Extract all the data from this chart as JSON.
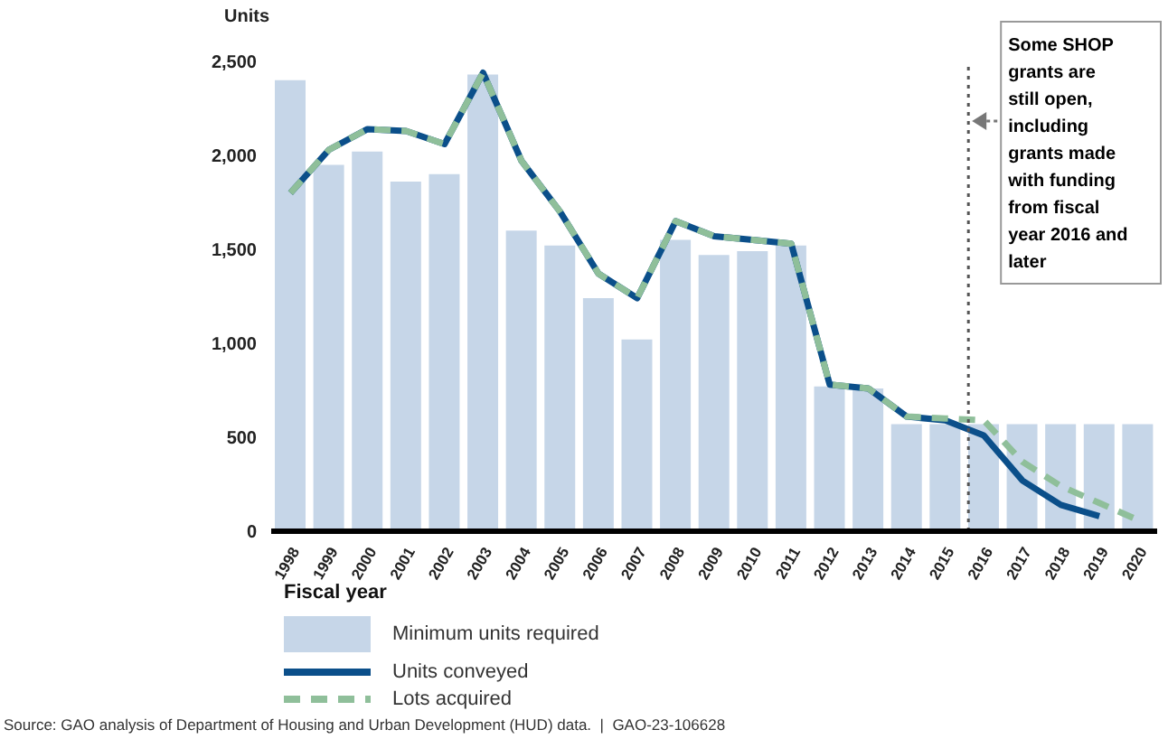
{
  "chart_data": {
    "type": "bar",
    "ylabel": "Units",
    "xlabel": "Fiscal year",
    "x": [
      1998,
      1999,
      2000,
      2001,
      2002,
      2003,
      2004,
      2005,
      2006,
      2007,
      2008,
      2009,
      2010,
      2011,
      2012,
      2013,
      2014,
      2015,
      2016,
      2017,
      2018,
      2019,
      2020
    ],
    "xlim": [
      1997.5,
      2020.5
    ],
    "xticks": [
      1998,
      1999,
      2000,
      2001,
      2002,
      2003,
      2004,
      2005,
      2006,
      2007,
      2008,
      2009,
      2010,
      2011,
      2012,
      2013,
      2014,
      2015,
      2016,
      2017,
      2018,
      2019,
      2020
    ],
    "ylim": [
      0,
      2500
    ],
    "yticks": [
      0,
      500,
      {
        "value": 1000,
        "label": "1,000"
      },
      {
        "value": 1500,
        "label": "1,500"
      },
      {
        "value": 2000,
        "label": "2,000"
      },
      {
        "value": 2500,
        "label": "2,500"
      }
    ],
    "series": [
      {
        "name": "Minimum units required",
        "color": "#c6d6e8",
        "values": [
          2400,
          1950,
          2020,
          1860,
          1900,
          2430,
          1600,
          1520,
          1240,
          1020,
          1550,
          1470,
          1490,
          1520,
          770,
          760,
          570,
          570,
          570,
          570,
          570,
          570,
          570
        ]
      },
      {
        "name": "Units conveyed",
        "type": "line",
        "color": "#0b4f8a",
        "line_style": "solid",
        "values": [
          1800,
          2030,
          2140,
          2130,
          2060,
          2440,
          1970,
          1700,
          1370,
          1240,
          1650,
          1570,
          1550,
          1530,
          780,
          760,
          610,
          590,
          510,
          270,
          140,
          80,
          null
        ]
      },
      {
        "name": "Lots acquired",
        "type": "line",
        "color": "#8fbf9a",
        "line_style": "dashed",
        "values": [
          1800,
          2030,
          2140,
          2130,
          2060,
          2440,
          1970,
          1700,
          1370,
          1240,
          1650,
          1570,
          1550,
          1530,
          780,
          760,
          610,
          600,
          590,
          370,
          240,
          150,
          60
        ]
      }
    ],
    "ref_lines": [
      {
        "axis": "x",
        "value": 2015.6,
        "label": "Some SHOP grants are still open, including grants made with funding from fiscal year 2016 and later",
        "line_style": "dotted",
        "color": "#555555"
      }
    ],
    "legend": "bottom",
    "grid": false,
    "annotations": [
      "Source: GAO analysis of Department of Housing and Urban Development (HUD) data.  |  GAO-23-106628"
    ]
  }
}
